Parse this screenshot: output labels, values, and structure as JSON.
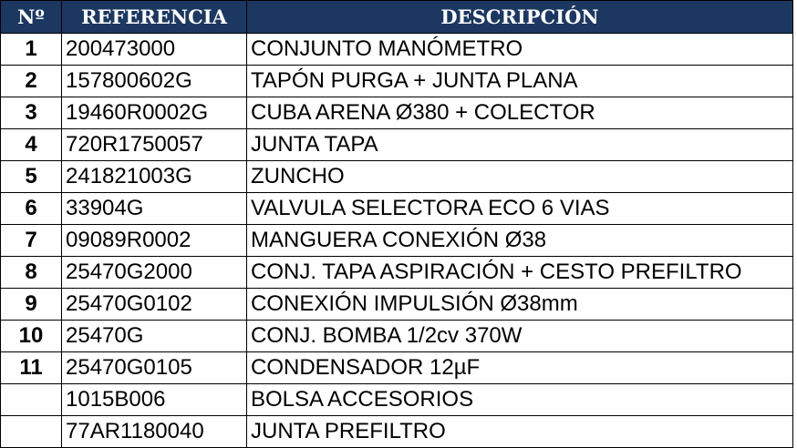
{
  "headers": {
    "num": "Nº",
    "ref": "REFERENCIA",
    "desc": "DESCRIPCIÓN"
  },
  "header_color": "#1c3760",
  "rows": [
    {
      "num": "1",
      "ref": "200473000",
      "desc": "CONJUNTO MANÓMETRO"
    },
    {
      "num": "2",
      "ref": "157800602G",
      "desc": "TAPÓN PURGA  + JUNTA PLANA"
    },
    {
      "num": "3",
      "ref": "19460R0002G",
      "desc": "CUBA ARENA Ø380 + COLECTOR"
    },
    {
      "num": "4",
      "ref": "720R1750057",
      "desc": "JUNTA TAPA"
    },
    {
      "num": "5",
      "ref": "241821003G",
      "desc": "ZUNCHO"
    },
    {
      "num": "6",
      "ref": "33904G",
      "desc": "VALVULA SELECTORA ECO 6 VIAS"
    },
    {
      "num": "7",
      "ref": "09089R0002",
      "desc": "MANGUERA CONEXIÓN Ø38"
    },
    {
      "num": "8",
      "ref": "25470G2000",
      "desc": "CONJ. TAPA ASPIRACIÓN + CESTO PREFILTRO"
    },
    {
      "num": "9",
      "ref": "25470G0102",
      "desc": "CONEXIÓN IMPULSIÓN Ø38mm"
    },
    {
      "num": "10",
      "ref": "25470G",
      "desc": "CONJ. BOMBA 1/2cv 370W"
    },
    {
      "num": "11",
      "ref": "25470G0105",
      "desc": "CONDENSADOR 12µF"
    },
    {
      "num": "",
      "ref": "1015B006",
      "desc": "BOLSA ACCESORIOS"
    },
    {
      "num": "",
      "ref": "77AR1180040",
      "desc": "JUNTA PREFILTRO"
    }
  ]
}
